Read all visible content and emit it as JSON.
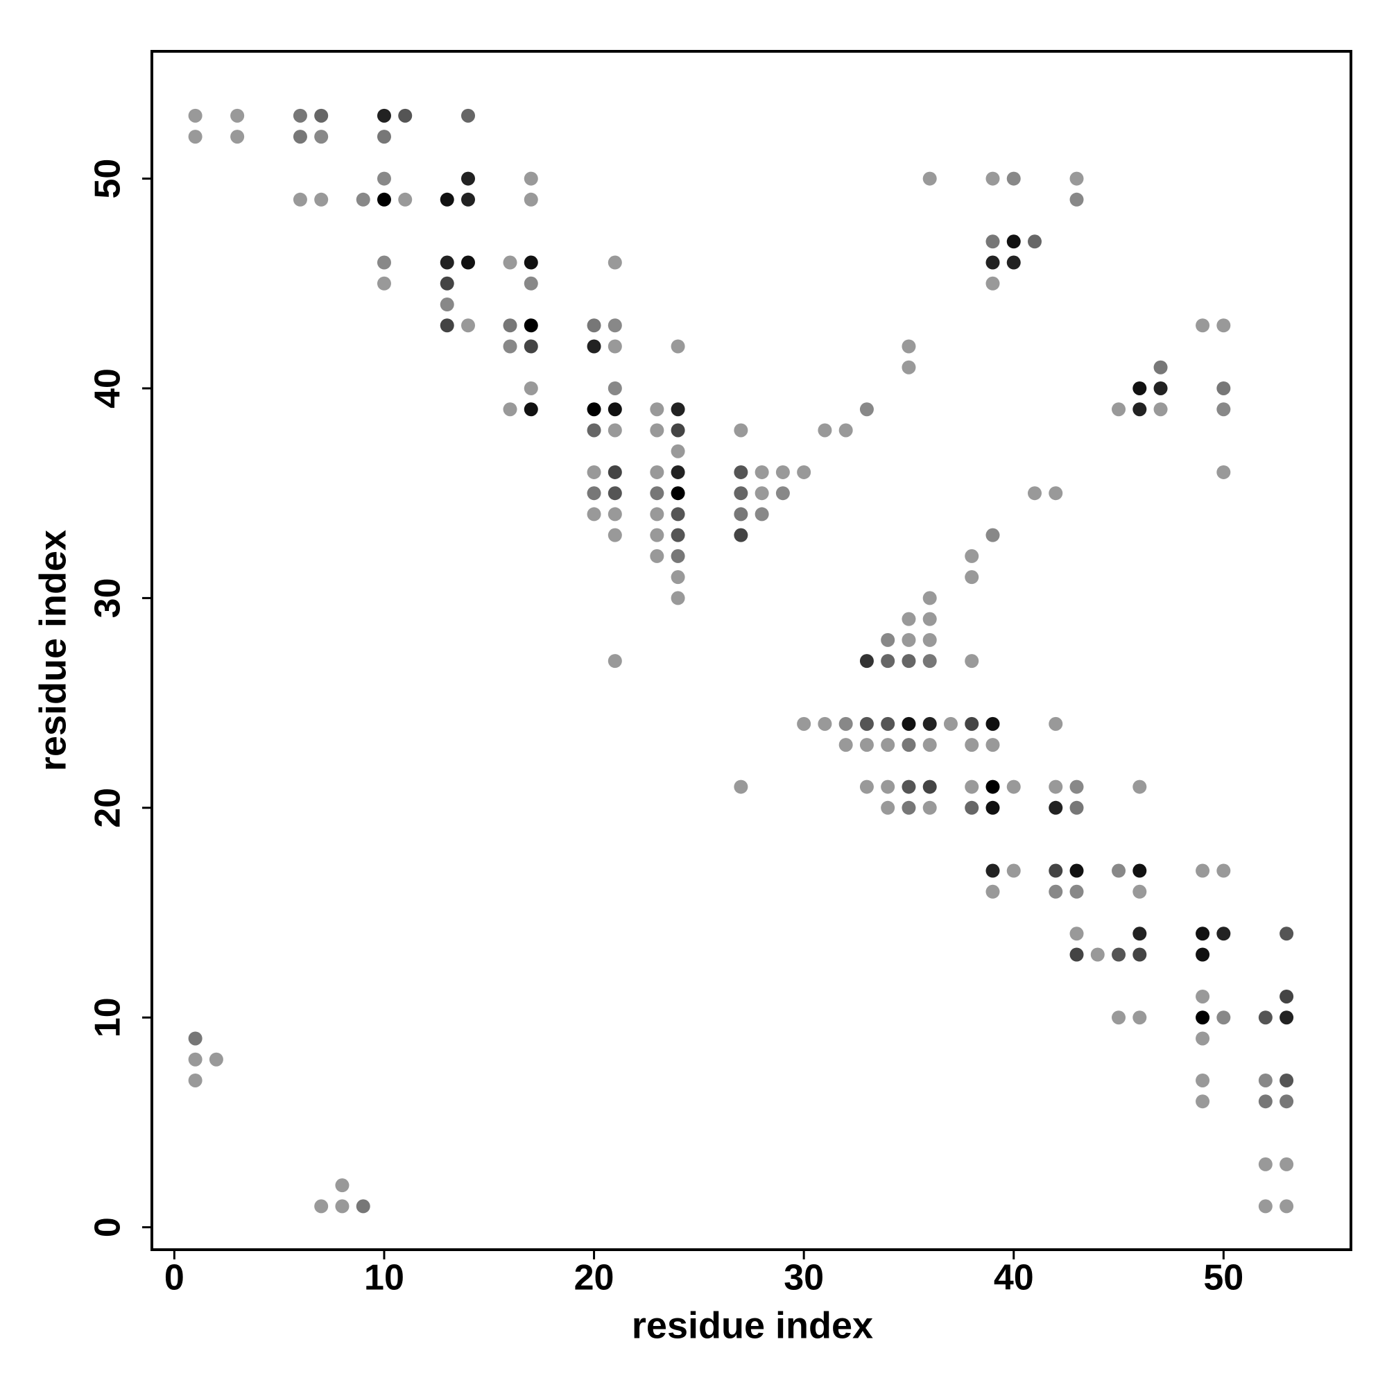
{
  "chart_data": {
    "type": "scatter",
    "xlabel": "residue index",
    "ylabel": "residue index",
    "xlim": [
      -1.07,
      56.07
    ],
    "ylim": [
      -1.07,
      56.07
    ],
    "xticks": [
      0,
      10,
      20,
      30,
      40,
      50
    ],
    "yticks": [
      0,
      10,
      20,
      30,
      40,
      50
    ],
    "x": [
      1,
      3,
      6,
      7,
      10,
      11,
      14,
      1,
      3,
      6,
      7,
      10,
      10,
      14,
      17,
      36,
      39,
      40,
      43,
      6,
      7,
      9,
      10,
      11,
      13,
      14,
      17,
      43,
      39,
      40,
      41,
      10,
      13,
      14,
      16,
      17,
      21,
      39,
      40,
      10,
      13,
      17,
      39,
      13,
      13,
      14,
      16,
      17,
      20,
      21,
      49,
      50,
      16,
      17,
      20,
      21,
      24,
      35,
      35,
      47,
      17,
      21,
      46,
      47,
      50,
      16,
      17,
      20,
      21,
      23,
      24,
      33,
      45,
      46,
      47,
      50,
      20,
      21,
      23,
      24,
      27,
      31,
      32,
      24,
      20,
      21,
      23,
      24,
      27,
      28,
      29,
      30,
      50,
      20,
      21,
      23,
      24,
      27,
      28,
      29,
      41,
      42,
      20,
      21,
      23,
      24,
      27,
      28,
      21,
      23,
      24,
      27,
      39,
      23,
      24,
      38,
      24,
      38,
      24,
      36,
      35,
      36,
      34,
      35,
      36,
      21,
      33,
      34,
      35,
      36,
      38,
      30,
      31,
      32,
      33,
      34,
      35,
      36,
      37,
      38,
      39,
      42,
      32,
      33,
      34,
      35,
      36,
      38,
      39,
      27,
      33,
      34,
      35,
      36,
      38,
      39,
      40,
      42,
      43,
      46,
      34,
      35,
      36,
      38,
      39,
      42,
      43,
      39,
      40,
      42,
      43,
      45,
      46,
      49,
      50,
      39,
      42,
      43,
      46,
      43,
      46,
      49,
      50,
      53,
      43,
      44,
      45,
      46,
      49,
      49,
      53,
      45,
      46,
      49,
      50,
      52,
      53,
      1,
      49,
      1,
      2,
      1,
      49,
      52,
      53,
      49,
      52,
      53,
      52,
      53,
      8,
      7,
      8,
      9,
      52,
      53
    ],
    "y": [
      53,
      53,
      53,
      53,
      53,
      53,
      53,
      52,
      52,
      52,
      52,
      52,
      50,
      50,
      50,
      50,
      50,
      50,
      50,
      49,
      49,
      49,
      49,
      49,
      49,
      49,
      49,
      49,
      47,
      47,
      47,
      46,
      46,
      46,
      46,
      46,
      46,
      46,
      46,
      45,
      45,
      45,
      45,
      44,
      43,
      43,
      43,
      43,
      43,
      43,
      43,
      43,
      42,
      42,
      42,
      42,
      42,
      42,
      41,
      41,
      40,
      40,
      40,
      40,
      40,
      39,
      39,
      39,
      39,
      39,
      39,
      39,
      39,
      39,
      39,
      39,
      38,
      38,
      38,
      38,
      38,
      38,
      38,
      37,
      36,
      36,
      36,
      36,
      36,
      36,
      36,
      36,
      36,
      35,
      35,
      35,
      35,
      35,
      35,
      35,
      35,
      35,
      34,
      34,
      34,
      34,
      34,
      34,
      33,
      33,
      33,
      33,
      33,
      32,
      32,
      32,
      31,
      31,
      30,
      30,
      29,
      29,
      28,
      28,
      28,
      27,
      27,
      27,
      27,
      27,
      27,
      24,
      24,
      24,
      24,
      24,
      24,
      24,
      24,
      24,
      24,
      24,
      23,
      23,
      23,
      23,
      23,
      23,
      23,
      21,
      21,
      21,
      21,
      21,
      21,
      21,
      21,
      21,
      21,
      21,
      20,
      20,
      20,
      20,
      20,
      20,
      20,
      17,
      17,
      17,
      17,
      17,
      17,
      17,
      17,
      16,
      16,
      16,
      16,
      14,
      14,
      14,
      14,
      14,
      13,
      13,
      13,
      13,
      13,
      11,
      11,
      10,
      10,
      10,
      10,
      10,
      10,
      9,
      9,
      8,
      8,
      7,
      7,
      7,
      7,
      6,
      6,
      6,
      3,
      3,
      2,
      1,
      1,
      1,
      1,
      1
    ],
    "colors": [
      "#999",
      "#999",
      "#777",
      "#666",
      "#222",
      "#555",
      "#666",
      "#999",
      "#999",
      "#777",
      "#888",
      "#777",
      "#888",
      "#222",
      "#999",
      "#999",
      "#999",
      "#888",
      "#999",
      "#999",
      "#999",
      "#888",
      "#000",
      "#999",
      "#111",
      "#222",
      "#999",
      "#888",
      "#777",
      "#111",
      "#666",
      "#888",
      "#222",
      "#111",
      "#999",
      "#111",
      "#999",
      "#222",
      "#222",
      "#999",
      "#444",
      "#888",
      "#999",
      "#888",
      "#444",
      "#999",
      "#777",
      "#000",
      "#777",
      "#888",
      "#999",
      "#999",
      "#888",
      "#444",
      "#222",
      "#999",
      "#999",
      "#999",
      "#999",
      "#777",
      "#999",
      "#888",
      "#111",
      "#222",
      "#777",
      "#999",
      "#111",
      "#000",
      "#111",
      "#999",
      "#222",
      "#888",
      "#999",
      "#222",
      "#999",
      "#888",
      "#666",
      "#999",
      "#999",
      "#444",
      "#999",
      "#999",
      "#999",
      "#999",
      "#999",
      "#444",
      "#999",
      "#222",
      "#555",
      "#999",
      "#999",
      "#999",
      "#999",
      "#777",
      "#555",
      "#777",
      "#000",
      "#666",
      "#999",
      "#888",
      "#999",
      "#999",
      "#999",
      "#999",
      "#999",
      "#555",
      "#777",
      "#888",
      "#999",
      "#999",
      "#555",
      "#444",
      "#888",
      "#999",
      "#777",
      "#999",
      "#999",
      "#999",
      "#999",
      "#999",
      "#999",
      "#999",
      "#888",
      "#999",
      "#999",
      "#999",
      "#333",
      "#666",
      "#666",
      "#777",
      "#999",
      "#999",
      "#999",
      "#888",
      "#555",
      "#555",
      "#111",
      "#222",
      "#999",
      "#444",
      "#111",
      "#999",
      "#999",
      "#999",
      "#999",
      "#777",
      "#999",
      "#999",
      "#999",
      "#999",
      "#999",
      "#999",
      "#555",
      "#444",
      "#999",
      "#000",
      "#999",
      "#999",
      "#888",
      "#999",
      "#999",
      "#777",
      "#999",
      "#666",
      "#111",
      "#222",
      "#777",
      "#222",
      "#999",
      "#444",
      "#111",
      "#888",
      "#111",
      "#999",
      "#999",
      "#999",
      "#888",
      "#888",
      "#999",
      "#999",
      "#222",
      "#111",
      "#222",
      "#555",
      "#444",
      "#999",
      "#555",
      "#444",
      "#111",
      "#999",
      "#444",
      "#999",
      "#999",
      "#000",
      "#888",
      "#555",
      "#222",
      "#777",
      "#999",
      "#999",
      "#999",
      "#999",
      "#999",
      "#888",
      "#555",
      "#999",
      "#777",
      "#777",
      "#999",
      "#999",
      "#999",
      "#999",
      "#999",
      "#777",
      "#999",
      "#999"
    ]
  }
}
